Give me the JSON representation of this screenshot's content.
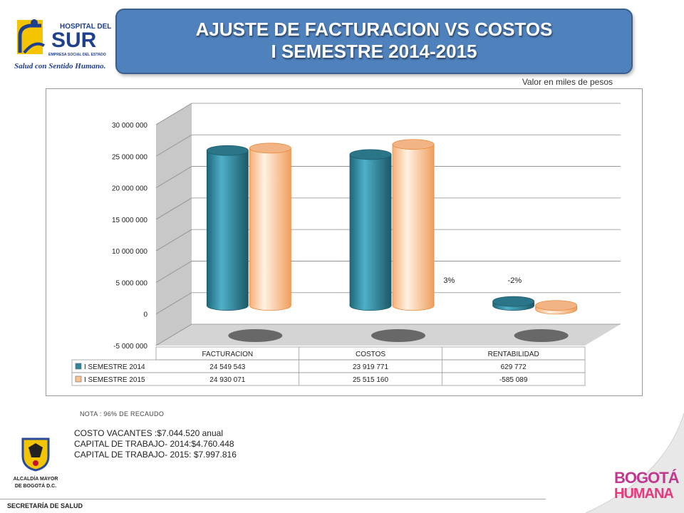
{
  "header": {
    "title_line1": "AJUSTE DE FACTURACION VS COSTOS",
    "title_line2": "I SEMESTRE 2014-2015"
  },
  "hospital_logo": {
    "name_line1": "HOSPITAL DEL",
    "name_line2": "SUR",
    "subtitle": "EMPRESA SOCIAL DEL ESTADO",
    "slogan": "Salud con Sentido Humano."
  },
  "units_label": "Valor en miles de pesos",
  "chart_data": {
    "type": "bar",
    "categories": [
      "FACTURACION",
      "COSTOS",
      "RENTABILIDAD"
    ],
    "series": [
      {
        "name": "I SEMESTRE 2014",
        "values": [
          24549543,
          23919771,
          629772
        ],
        "display": [
          "24 549 543",
          "23 919 771",
          "629 772"
        ],
        "color": "#31859c"
      },
      {
        "name": "I SEMESTRE 2015",
        "values": [
          24930071,
          25515160,
          -585089
        ],
        "display": [
          "24 930 071",
          "25 515 160",
          "-585 089"
        ],
        "color": "#fac090"
      }
    ],
    "ylim": [
      -5000000,
      30000000
    ],
    "ytick_values": [
      -5000000,
      0,
      5000000,
      10000000,
      15000000,
      20000000,
      25000000,
      30000000
    ],
    "yticks": [
      "-5 000 000",
      "0",
      "5 000 000",
      "10 000 000",
      "15 000 000",
      "20 000 000",
      "25 000 000",
      "30 000 000"
    ],
    "annotations": [
      "3%",
      "-2%"
    ],
    "grid": true,
    "legend": "data-table"
  },
  "note": "NOTA : 96% DE RECAUDO",
  "notes": [
    "COSTO  VACANTES :$7.044.520  anual",
    "CAPITAL  DE TRABAJO-  2014:$4.760.448",
    "CAPITAL  DE TRABAJO-  2015: $7.997.816"
  ],
  "alcaldia": {
    "line1": "ALCALDÍA MAYOR",
    "line2": "DE BOGOTÁ D.C."
  },
  "footer": "SECRETARÍA DE SALUD",
  "bogota": {
    "line1": "BOGOTÁ",
    "line2": "HUMANA"
  },
  "colors": {
    "title_bg": "#4f81bd",
    "series_2014": "#31859c",
    "series_2015": "#fac090",
    "brand_pink": "#c0398e"
  }
}
